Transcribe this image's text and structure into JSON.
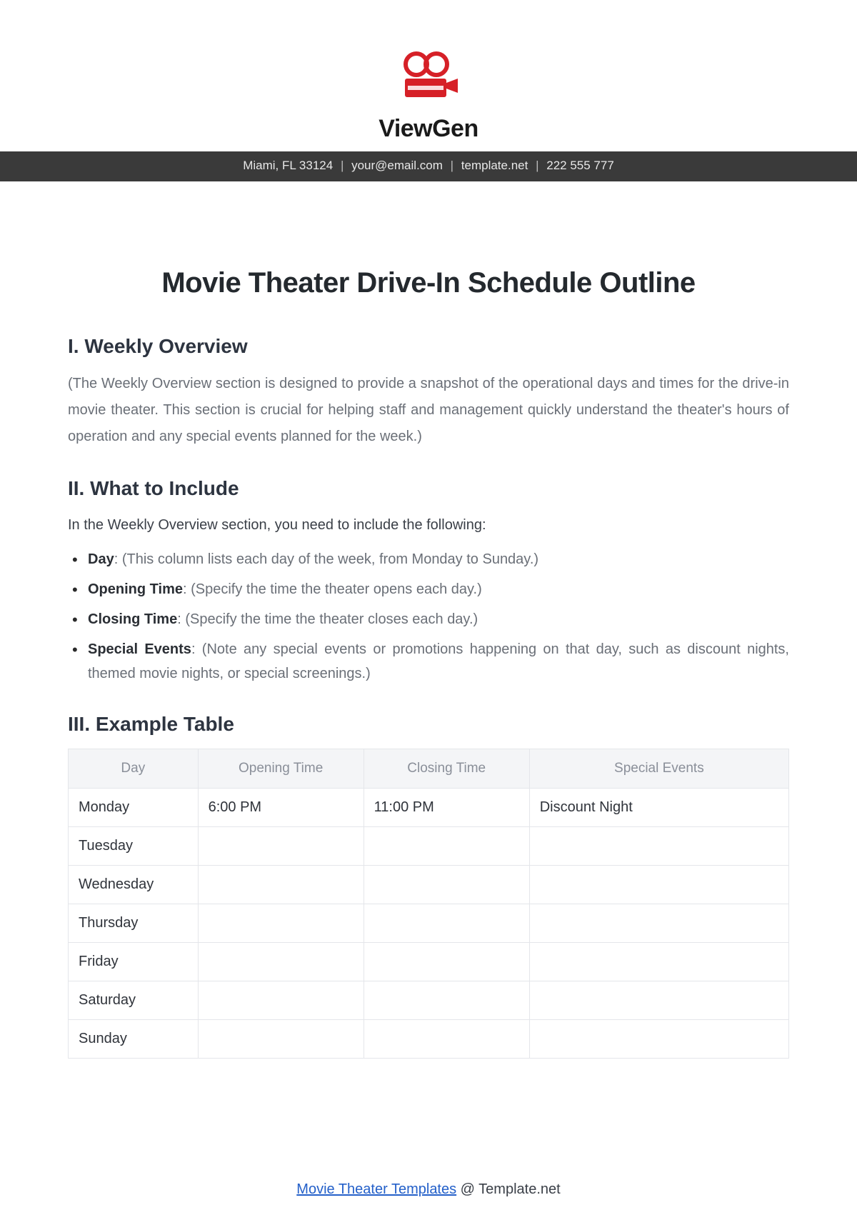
{
  "brand": {
    "name": "ViewGen"
  },
  "header": {
    "address": "Miami, FL 33124",
    "email": "your@email.com",
    "website": "template.net",
    "phone": "222 555 777"
  },
  "title": "Movie Theater Drive-In Schedule Outline",
  "sections": {
    "s1": {
      "heading": "I. Weekly Overview",
      "body": "(The Weekly Overview section is designed to provide a snapshot of the operational days and times for the drive-in movie theater. This section is crucial for helping staff and management quickly understand the theater's hours of operation and any special events planned for the week.)"
    },
    "s2": {
      "heading": "II. What to Include",
      "intro": "In the Weekly Overview section, you need to include the following:",
      "items": [
        {
          "label": "Day",
          "desc": ": (This column lists each day of the week, from Monday to Sunday.)"
        },
        {
          "label": "Opening Time",
          "desc": ": (Specify the time the theater opens each day.)"
        },
        {
          "label": "Closing Time",
          "desc": ": (Specify the time the theater closes each day.)"
        },
        {
          "label": "Special Events",
          "desc": ": (Note any special events or promotions happening on that day, such as discount nights, themed movie nights, or special screenings.)"
        }
      ]
    },
    "s3": {
      "heading": "III. Example Table"
    }
  },
  "table": {
    "columns": [
      "Day",
      "Opening Time",
      "Closing Time",
      "Special Events"
    ],
    "col_widths": [
      "18%",
      "23%",
      "23%",
      "36%"
    ],
    "header_bg": "#f4f5f7",
    "header_color": "#8a8f99",
    "border_color": "#e4e6ea",
    "rows": [
      [
        "Monday",
        "6:00 PM",
        "11:00 PM",
        "Discount Night"
      ],
      [
        "Tuesday",
        "",
        "",
        ""
      ],
      [
        "Wednesday",
        "",
        "",
        ""
      ],
      [
        "Thursday",
        "",
        "",
        ""
      ],
      [
        "Friday",
        "",
        "",
        ""
      ],
      [
        "Saturday",
        "",
        "",
        ""
      ],
      [
        "Sunday",
        "",
        "",
        ""
      ]
    ]
  },
  "footer": {
    "link_text": "Movie Theater Templates",
    "suffix": " @ Template.net"
  },
  "colors": {
    "brand_red": "#d62027",
    "bar_bg": "#3a3a3a",
    "heading": "#2d3440",
    "body_gray": "#6a6f77"
  }
}
